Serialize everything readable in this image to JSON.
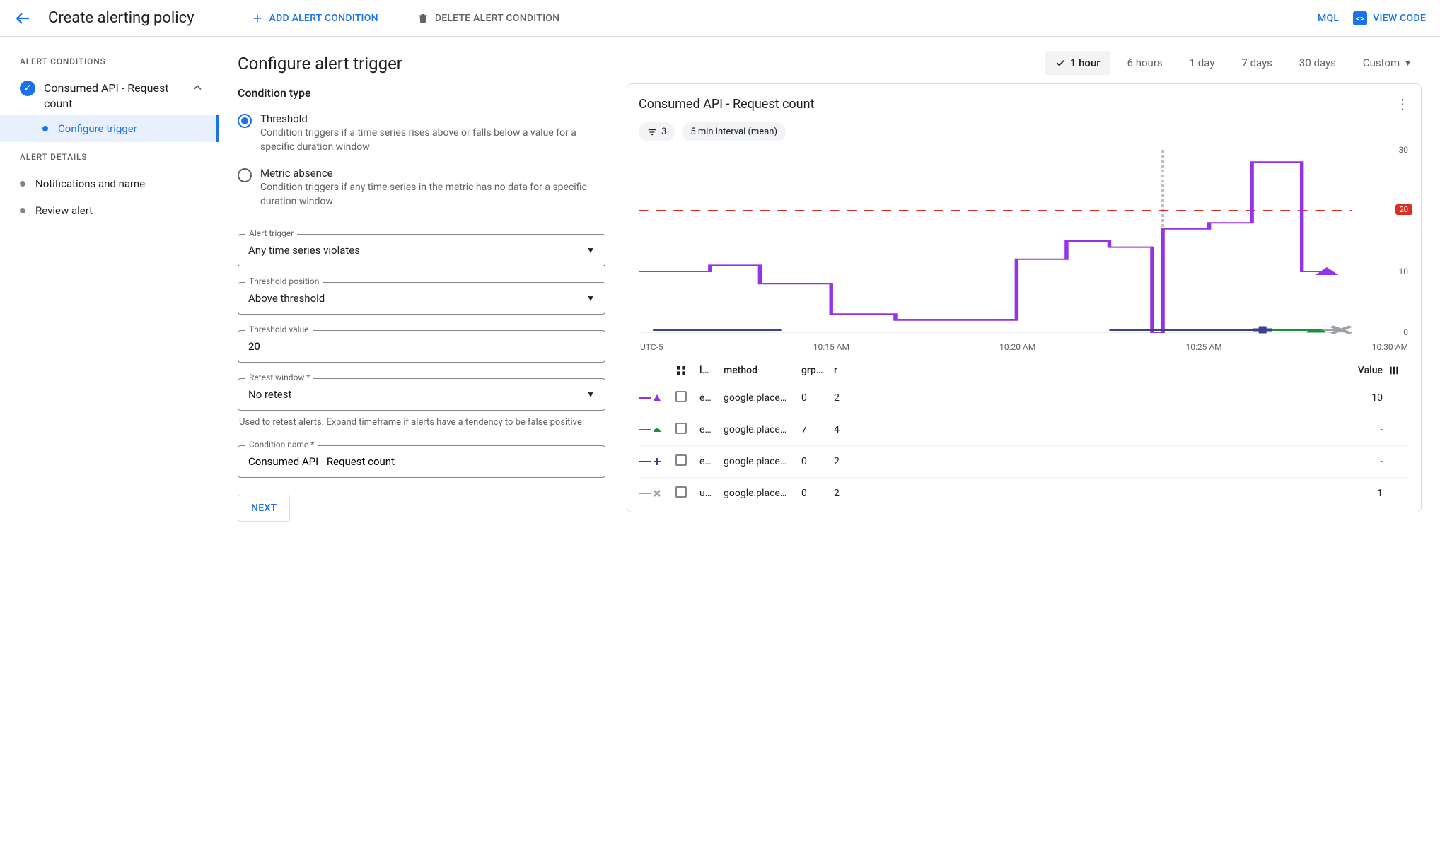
{
  "topbar": {
    "title": "Create alerting policy",
    "add": "ADD ALERT CONDITION",
    "delete": "DELETE ALERT CONDITION",
    "mql": "MQL",
    "view_code": "VIEW CODE"
  },
  "sidebar": {
    "section1": "ALERT CONDITIONS",
    "condition_name": "Consumed API - Request count",
    "configure": "Configure trigger",
    "section2": "ALERT DETAILS",
    "items": [
      "Notifications and name",
      "Review alert"
    ]
  },
  "form": {
    "heading": "Configure alert trigger",
    "cond_type": "Condition type",
    "radios": [
      {
        "label": "Threshold",
        "desc": "Condition triggers if a time series rises above or falls below a value for a specific duration window",
        "checked": true
      },
      {
        "label": "Metric absence",
        "desc": "Condition triggers if any time series in the metric has no data for a specific duration window",
        "checked": false
      }
    ],
    "alert_trigger": {
      "label": "Alert trigger",
      "value": "Any time series violates"
    },
    "threshold_position": {
      "label": "Threshold position",
      "value": "Above threshold"
    },
    "threshold_value": {
      "label": "Threshold value",
      "value": "20"
    },
    "retest": {
      "label": "Retest window *",
      "value": "No retest",
      "helper": "Used to retest alerts. Expand timeframe if alerts have a tendency to be false positive."
    },
    "cond_name": {
      "label": "Condition name *",
      "value": "Consumed API - Request count"
    },
    "next": "NEXT"
  },
  "time_ranges": {
    "options": [
      "1 hour",
      "6 hours",
      "1 day",
      "7 days",
      "30 days",
      "Custom"
    ],
    "active": 0
  },
  "chart": {
    "title": "Consumed API - Request count",
    "filter_count": "3",
    "interval": "5 min interval (mean)",
    "timezone": "UTC-5",
    "x_ticks": [
      "10:15 AM",
      "10:20 AM",
      "10:25 AM",
      "10:30 AM"
    ],
    "y_ticks": [
      0,
      10,
      20,
      30
    ],
    "y_max": 30,
    "threshold": 20,
    "threshold_color": "#d93025",
    "cursor_x": 0.735,
    "series": {
      "purple": {
        "color": "#9334e6",
        "points": [
          [
            0.0,
            10
          ],
          [
            0.1,
            10
          ],
          [
            0.1,
            11
          ],
          [
            0.17,
            11
          ],
          [
            0.17,
            8
          ],
          [
            0.27,
            8
          ],
          [
            0.27,
            3
          ],
          [
            0.36,
            3
          ],
          [
            0.36,
            2
          ],
          [
            0.53,
            2
          ],
          [
            0.53,
            12
          ],
          [
            0.6,
            12
          ],
          [
            0.6,
            15
          ],
          [
            0.66,
            15
          ],
          [
            0.66,
            14
          ],
          [
            0.72,
            14
          ],
          [
            0.72,
            0
          ],
          [
            0.735,
            0
          ],
          [
            0.735,
            17
          ],
          [
            0.8,
            17
          ],
          [
            0.8,
            18
          ],
          [
            0.86,
            18
          ],
          [
            0.86,
            28
          ],
          [
            0.93,
            28
          ],
          [
            0.93,
            10
          ],
          [
            0.96,
            10
          ]
        ]
      },
      "navy": {
        "color": "#3c4289",
        "points": [
          [
            0.02,
            0.4
          ],
          [
            0.2,
            0.4
          ]
        ],
        "segment2": [
          [
            0.66,
            0.4
          ],
          [
            0.87,
            0.4
          ]
        ]
      },
      "green": {
        "color": "#1e8e3e",
        "points": [
          [
            0.88,
            0.4
          ],
          [
            0.95,
            0.4
          ]
        ]
      },
      "grey": {
        "color": "#9aa0a6",
        "points": [
          [
            0.955,
            0.4
          ],
          [
            0.985,
            0.4
          ]
        ]
      }
    },
    "markers": [
      {
        "shape": "triangle",
        "color": "#9334e6",
        "x": 0.965,
        "y": 10
      },
      {
        "shape": "plus",
        "color": "#3c4289",
        "x": 0.875,
        "y": 0.4
      },
      {
        "shape": "bullet",
        "color": "#1e8e3e",
        "x": 0.95,
        "y": 0.4
      },
      {
        "shape": "x",
        "color": "#9aa0a6",
        "x": 0.985,
        "y": 0.4
      }
    ]
  },
  "legend": {
    "headers": {
      "l": "l…",
      "method": "method",
      "grp": "grp…",
      "r": "r",
      "value": "Value"
    },
    "rows": [
      {
        "sym": "triangle",
        "sym_color": "#9334e6",
        "l": "e…",
        "method": "google.place…",
        "grp": "0",
        "r": "2",
        "value": "10"
      },
      {
        "sym": "bullet",
        "sym_color": "#1e8e3e",
        "l": "e…",
        "method": "google.place…",
        "grp": "7",
        "r": "4",
        "value": "-"
      },
      {
        "sym": "plus",
        "sym_color": "#3c4289",
        "l": "e…",
        "method": "google.place…",
        "grp": "0",
        "r": "2",
        "value": "-"
      },
      {
        "sym": "x",
        "sym_color": "#9aa0a6",
        "l": "u…",
        "method": "google.place…",
        "grp": "0",
        "r": "2",
        "value": "1"
      }
    ]
  }
}
